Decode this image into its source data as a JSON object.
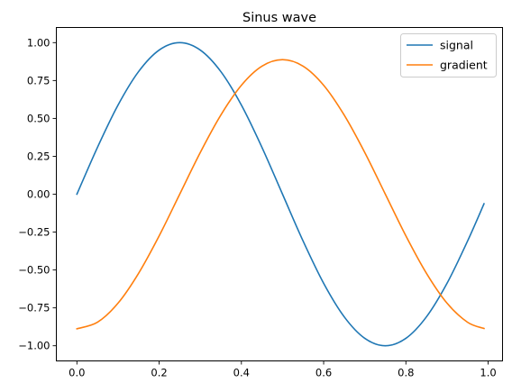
{
  "chart_data": {
    "type": "line",
    "title": "Sinus wave",
    "xlabel": "",
    "ylabel": "",
    "xlim": [
      -0.05,
      1.035
    ],
    "ylim": [
      -1.1,
      1.1
    ],
    "xticks": [
      0.0,
      0.2,
      0.4,
      0.6,
      0.8,
      1.0
    ],
    "xtick_labels": [
      "0.0",
      "0.2",
      "0.4",
      "0.6",
      "0.8",
      "1.0"
    ],
    "yticks": [
      1.0,
      0.75,
      0.5,
      0.25,
      0.0,
      -0.25,
      -0.5,
      -0.75,
      -1.0
    ],
    "ytick_labels": [
      "1.00",
      "0.75",
      "0.50",
      "0.25",
      "0.00",
      "−0.25",
      "−0.50",
      "−0.75",
      "−1.00"
    ],
    "grid": false,
    "legend_position": "top-right",
    "x": [
      0.0,
      0.05,
      0.1,
      0.15,
      0.2,
      0.25,
      0.3,
      0.35,
      0.4,
      0.45,
      0.5,
      0.55,
      0.6,
      0.65,
      0.7,
      0.75,
      0.8,
      0.85,
      0.9,
      0.95,
      0.99
    ],
    "series": [
      {
        "name": "signal",
        "color": "#1f77b4",
        "values": [
          0.0,
          0.309,
          0.588,
          0.809,
          0.951,
          1.0,
          0.951,
          0.809,
          0.588,
          0.309,
          0.0,
          -0.309,
          -0.588,
          -0.809,
          -0.951,
          -1.0,
          -0.951,
          -0.809,
          -0.588,
          -0.309,
          -0.063
        ]
      },
      {
        "name": "gradient",
        "color": "#ff7f0e",
        "values": [
          -0.888,
          -0.845,
          -0.719,
          -0.522,
          -0.275,
          0.0,
          0.275,
          0.522,
          0.719,
          0.845,
          0.888,
          0.845,
          0.719,
          0.522,
          0.275,
          0.0,
          -0.275,
          -0.522,
          -0.719,
          -0.845,
          -0.886
        ]
      }
    ]
  }
}
